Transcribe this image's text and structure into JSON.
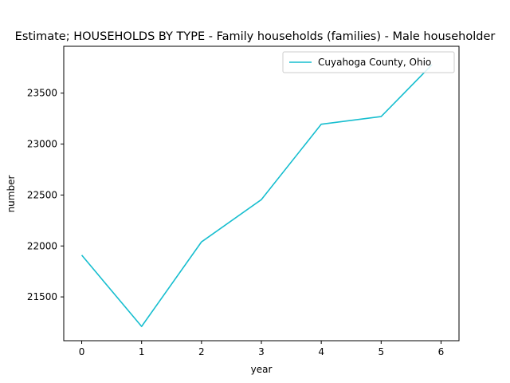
{
  "chart_data": {
    "type": "line",
    "title": "Estimate; HOUSEHOLDS BY TYPE - Family households (families) - Male householder",
    "xlabel": "year",
    "ylabel": "number",
    "x": [
      0,
      1,
      2,
      3,
      4,
      5,
      6
    ],
    "xticks": [
      "0",
      "1",
      "2",
      "3",
      "4",
      "5",
      "6"
    ],
    "yticks": [
      "21500",
      "22000",
      "22500",
      "23000",
      "23500"
    ],
    "ylim": [
      21070,
      23960
    ],
    "xlim": [
      -0.3,
      6.3
    ],
    "series": [
      {
        "name": "Cuyahoga County, Ohio",
        "color": "#17becf",
        "x": [
          0,
          1,
          2,
          3,
          4,
          5,
          5.85
        ],
        "values": [
          21910,
          21210,
          22040,
          22455,
          23195,
          23270,
          23780
        ]
      }
    ],
    "legend_position": "top-right",
    "grid": false
  }
}
